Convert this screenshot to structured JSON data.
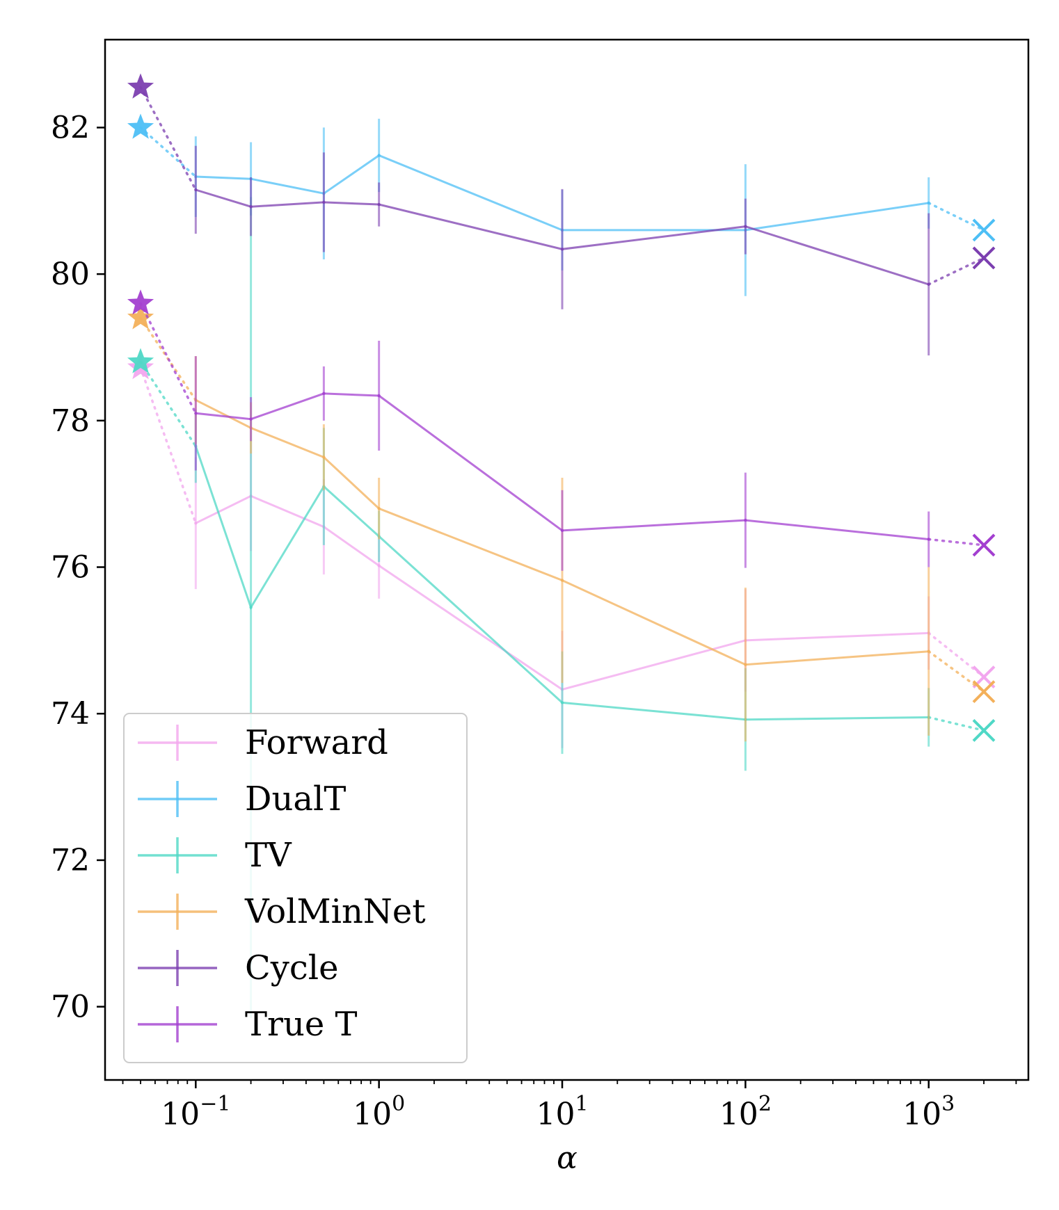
{
  "chart_data": {
    "type": "line",
    "title": "",
    "xlabel": "α",
    "ylabel": "",
    "xscale": "log",
    "xlim": [
      0.032,
      3500
    ],
    "ylim": [
      69.0,
      83.2
    ],
    "yticks": [
      70,
      72,
      74,
      76,
      78,
      80,
      82
    ],
    "xticks": [
      {
        "value": 0.1,
        "base": "10",
        "exp": "−1"
      },
      {
        "value": 1,
        "base": "10",
        "exp": "0"
      },
      {
        "value": 10,
        "base": "10",
        "exp": "1"
      },
      {
        "value": 100,
        "base": "10",
        "exp": "2"
      },
      {
        "value": 1000,
        "base": "10",
        "exp": "3"
      }
    ],
    "grid": false,
    "legend_position": "bottom-left",
    "x": [
      0.1,
      0.2,
      0.5,
      1,
      10,
      100,
      1000
    ],
    "star_x": 0.05,
    "cross_x": 2000,
    "series": [
      {
        "name": "Forward",
        "color": "#f2a6ee",
        "values": [
          76.6,
          76.97,
          76.55,
          76.02,
          74.33,
          75.0,
          75.1
        ],
        "err": [
          0.9,
          0.75,
          0.65,
          0.45,
          0.8,
          0.7,
          0.5
        ],
        "star": 78.72,
        "cross": 74.5
      },
      {
        "name": "DualT",
        "color": "#4dbff5",
        "values": [
          81.33,
          81.3,
          81.1,
          81.62,
          80.6,
          80.6,
          80.97
        ],
        "err": [
          0.55,
          0.5,
          0.9,
          0.5,
          0.55,
          0.9,
          0.35
        ],
        "star": 82.0,
        "cross": 80.6
      },
      {
        "name": "TV",
        "color": "#4fd8c6",
        "values": [
          77.65,
          75.45,
          77.1,
          76.42,
          74.15,
          73.92,
          73.95
        ],
        "err": [
          0.5,
          5.6,
          0.8,
          0.35,
          0.7,
          0.7,
          0.4
        ],
        "star": 78.8,
        "cross": 73.77
      },
      {
        "name": "VolMinNet",
        "color": "#f3b05a",
        "values": [
          78.28,
          77.9,
          77.5,
          76.8,
          75.82,
          74.67,
          74.85
        ],
        "err": [
          0.6,
          0.35,
          0.45,
          0.42,
          1.4,
          1.05,
          1.15
        ],
        "star": 79.4,
        "cross": 74.3
      },
      {
        "name": "Cycle",
        "color": "#7c3fb0",
        "values": [
          81.15,
          80.92,
          80.98,
          80.95,
          80.34,
          80.65,
          79.86
        ],
        "err": [
          0.6,
          0.4,
          0.68,
          0.3,
          0.82,
          0.38,
          0.97
        ],
        "star": 82.55,
        "cross": 80.22
      },
      {
        "name": "True T",
        "color": "#a33fd0",
        "values": [
          78.1,
          78.02,
          78.37,
          78.34,
          76.5,
          76.64,
          76.38
        ],
        "err": [
          0.78,
          0.3,
          0.37,
          0.75,
          0.55,
          0.65,
          0.38
        ],
        "star": 79.6,
        "cross": 76.3
      }
    ]
  }
}
